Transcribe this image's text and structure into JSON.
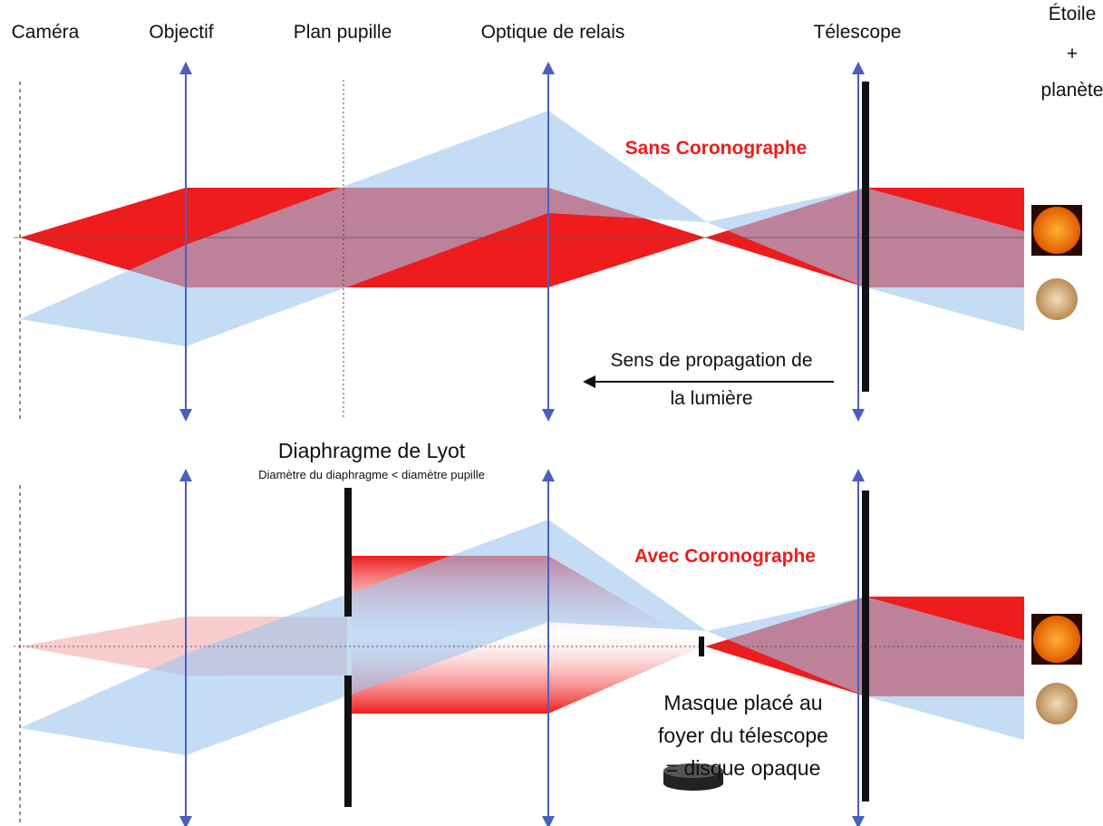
{
  "column_labels": [
    "Caméra",
    "Objectif",
    "Plan pupille",
    "Optique de relais",
    "Télescope"
  ],
  "star_label": [
    "Étoile",
    "+",
    "planète"
  ],
  "top_panel": {
    "title": "Sans Coronographe",
    "propagation_label": [
      "Sens de propagation de",
      "la lumière"
    ]
  },
  "bottom_panel": {
    "title": "Avec Coronographe",
    "lyot_title": "Diaphragme de Lyot",
    "lyot_note": "Diamètre du diaphragme < diamètre pupille",
    "mask_label": [
      "Masque placé au",
      "foyer du télescope",
      "= disque opaque"
    ]
  }
}
